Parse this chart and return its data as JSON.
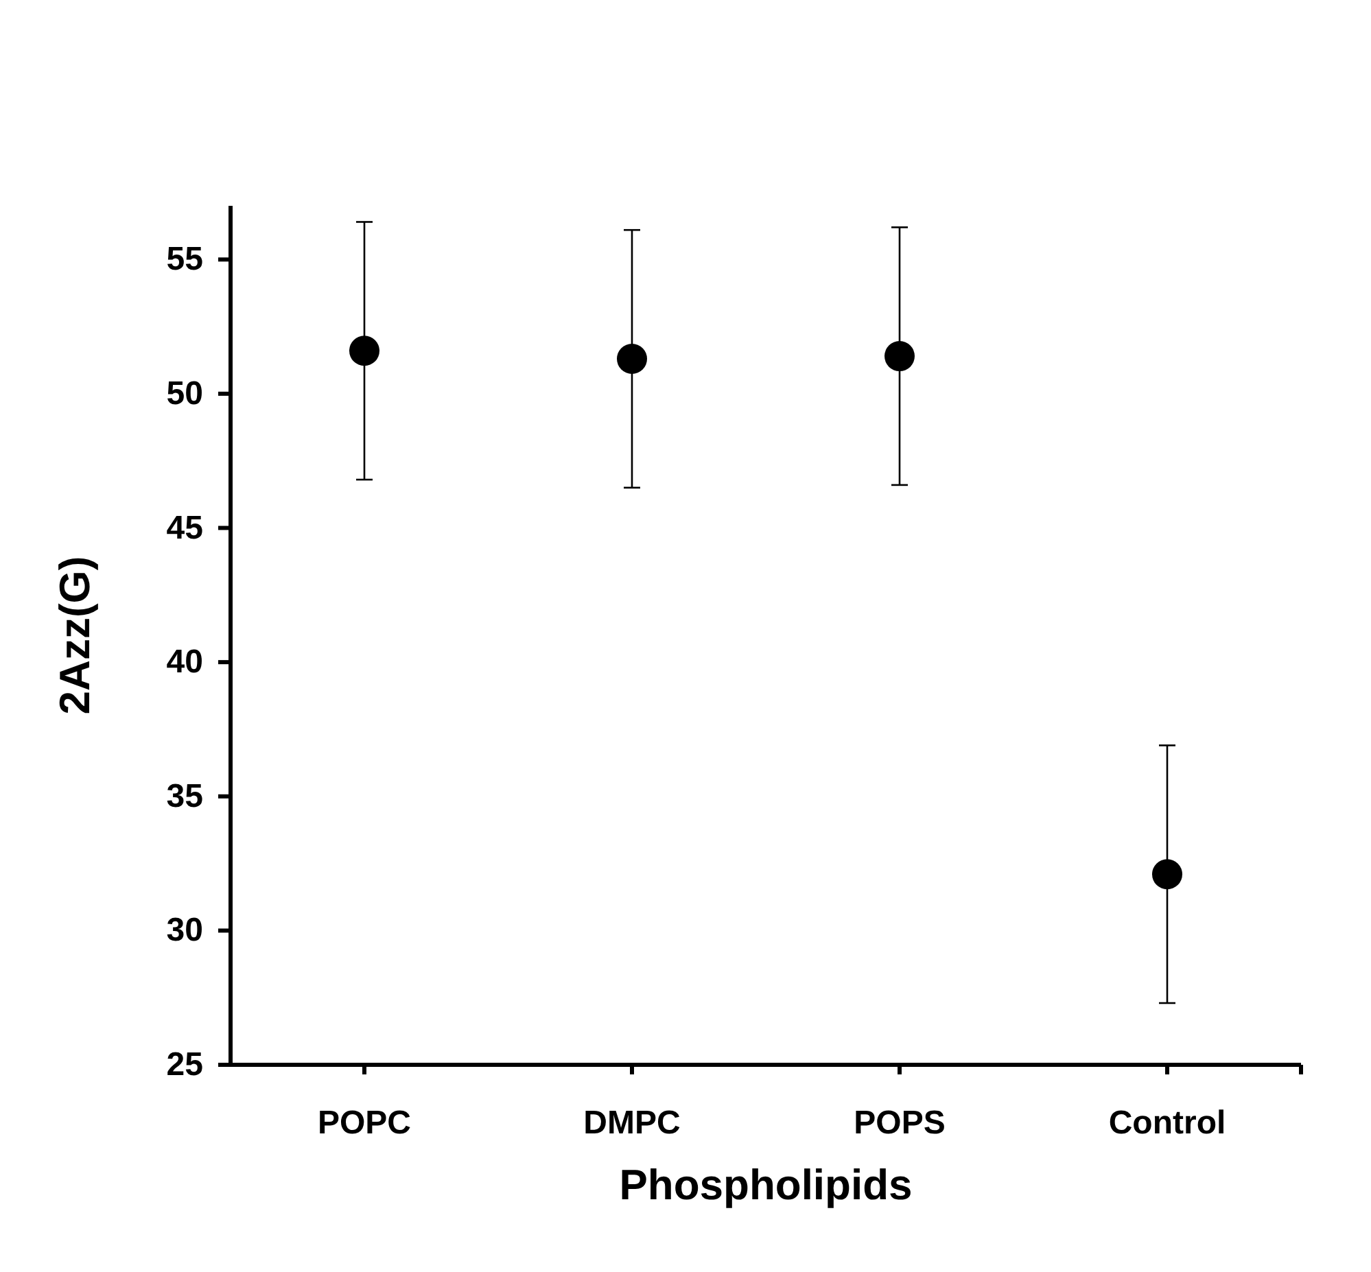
{
  "chart_data": {
    "type": "scatter",
    "xlabel": "Phospholipids",
    "ylabel": "2Azz(G)",
    "categories": [
      "POPC",
      "DMPC",
      "POPS",
      "Control"
    ],
    "series": [
      {
        "color": "#000000",
        "values": [
          51.6,
          51.3,
          51.4,
          32.1
        ],
        "errors": [
          4.8,
          4.8,
          4.8,
          4.8
        ]
      }
    ],
    "ylim": [
      25,
      57
    ],
    "yticks": [
      25,
      30,
      35,
      40,
      45,
      50,
      55
    ],
    "marker": "circle",
    "grid": false
  }
}
